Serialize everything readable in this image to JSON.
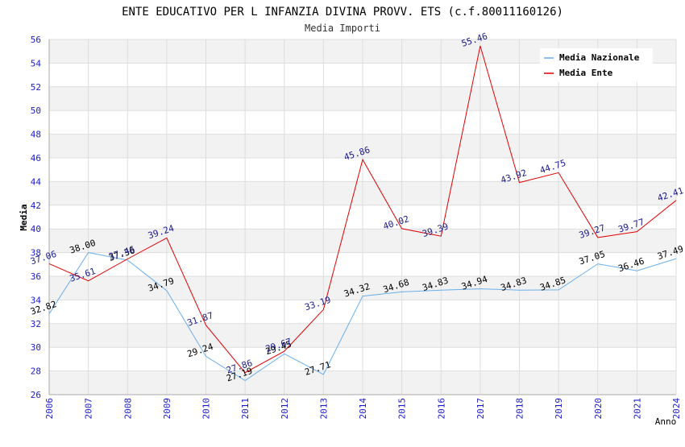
{
  "chart_data": {
    "type": "line",
    "title": "ENTE EDUCATIVO PER L INFANZIA DIVINA PROVV. ETS (c.f.80011160126)",
    "subtitle": "Media Importi",
    "xlabel": "Anno",
    "ylabel": "Media",
    "ylim": [
      26,
      56
    ],
    "ytick_step": 2,
    "grid": true,
    "legend_position": "top-right",
    "categories": [
      "2006",
      "2007",
      "2008",
      "2009",
      "2010",
      "2011",
      "2012",
      "2013",
      "2014",
      "2015",
      "2016",
      "2017",
      "2018",
      "2019",
      "2020",
      "2021",
      "2024"
    ],
    "series": [
      {
        "name": "Media Nazionale",
        "color": "#6aaee8",
        "label_color": "#000000",
        "values": [
          32.82,
          38.0,
          37.36,
          34.79,
          29.24,
          27.19,
          29.45,
          27.71,
          34.32,
          34.68,
          34.83,
          34.94,
          34.83,
          34.85,
          37.05,
          36.46,
          37.49
        ],
        "labels": [
          "32.82",
          "38.00",
          "37.36",
          "34.79",
          "29.24",
          "27.19",
          "29.45",
          "27.71",
          "34.32",
          "34.68",
          "34.83",
          "34.94",
          "34.83",
          "34.85",
          "37.05",
          "36.46",
          "37.49"
        ]
      },
      {
        "name": "Media Ente",
        "color": "#e00000",
        "label_color": "#1a1a8c",
        "values": [
          37.06,
          35.61,
          37.46,
          39.24,
          31.87,
          27.86,
          29.67,
          33.19,
          45.86,
          40.02,
          39.39,
          55.46,
          43.92,
          44.75,
          39.27,
          39.77,
          42.41
        ],
        "labels": [
          "37.06",
          "35.61",
          "37.46",
          "39.24",
          "31.87",
          "27.86",
          "29.67",
          "33.19",
          "45.86",
          "40.02",
          "39.39",
          "55.46",
          "43.92",
          "44.75",
          "39.27",
          "39.77",
          "42.41"
        ]
      }
    ],
    "colors": {
      "axis_tick_text": "#1a1acc",
      "band_fill": "#f2f2f2",
      "grid_line": "#dddddd",
      "title_text": "#000000",
      "subtitle_text": "#333333"
    }
  }
}
